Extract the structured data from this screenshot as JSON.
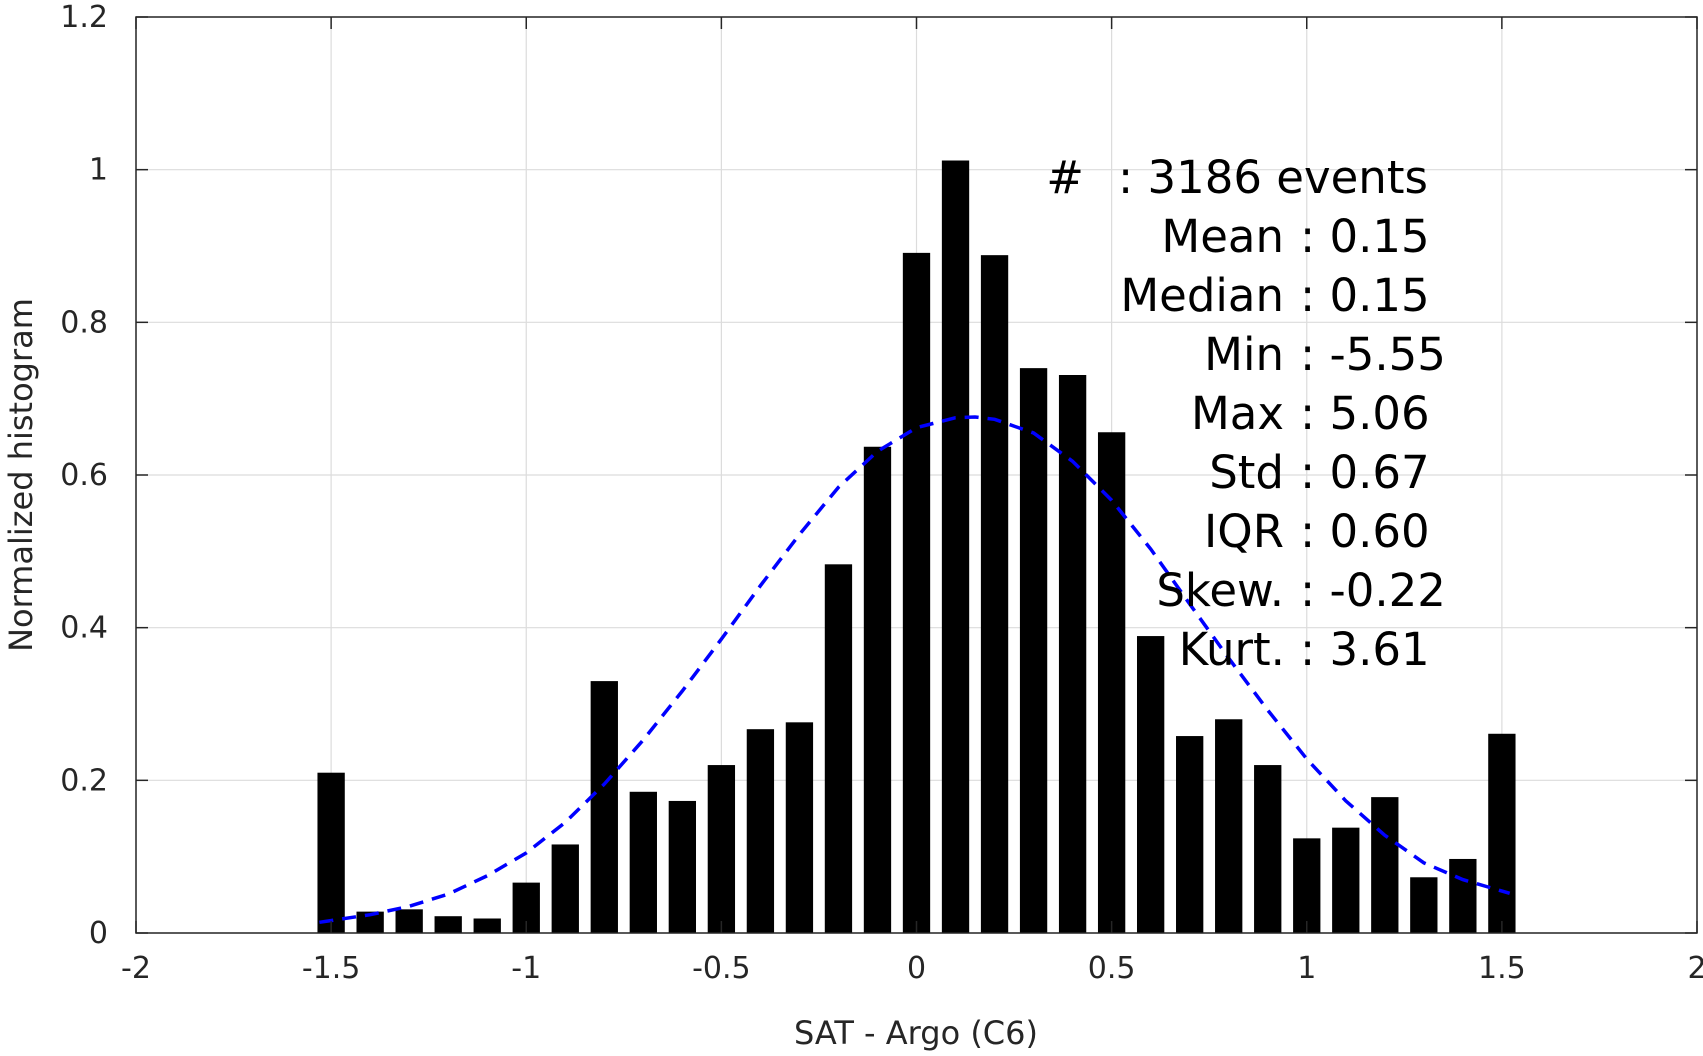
{
  "chart_data": {
    "type": "bar",
    "xlabel": "SAT - Argo (C6)",
    "ylabel": "Normalized histogram",
    "xlim": [
      -2,
      2
    ],
    "ylim": [
      0,
      1.2
    ],
    "grid": true,
    "xticks": [
      -2,
      -1.5,
      -1,
      -0.5,
      0,
      0.5,
      1,
      1.5,
      2
    ],
    "xtick_labels": [
      "-2",
      "-1.5",
      "-1",
      "-0.5",
      "0",
      "0.5",
      "1",
      "1.5",
      "2"
    ],
    "yticks": [
      0,
      0.2,
      0.4,
      0.6,
      0.8,
      1,
      1.2
    ],
    "ytick_labels": [
      "0",
      "0.2",
      "0.4",
      "0.6",
      "0.8",
      "1",
      "1.2"
    ],
    "bar_width": 0.07,
    "bars": {
      "x": [
        -1.5,
        -1.4,
        -1.3,
        -1.2,
        -1.1,
        -1.0,
        -0.9,
        -0.8,
        -0.7,
        -0.6,
        -0.5,
        -0.4,
        -0.3,
        -0.2,
        -0.1,
        0.0,
        0.1,
        0.2,
        0.3,
        0.4,
        0.5,
        0.6,
        0.7,
        0.8,
        0.9,
        1.0,
        1.1,
        1.2,
        1.3,
        1.4,
        1.5
      ],
      "values": [
        0.21,
        0.028,
        0.031,
        0.022,
        0.019,
        0.066,
        0.116,
        0.33,
        0.185,
        0.173,
        0.22,
        0.267,
        0.276,
        0.483,
        0.637,
        0.891,
        1.012,
        0.888,
        0.74,
        0.731,
        0.656,
        0.389,
        0.258,
        0.28,
        0.22,
        0.124,
        0.138,
        0.178,
        0.073,
        0.097,
        0.261
      ],
      "color": "#000000"
    },
    "fit_curve": {
      "style": "dashed",
      "color": "#0000ff",
      "x": [
        -1.53,
        -1.4,
        -1.3,
        -1.2,
        -1.1,
        -1.0,
        -0.9,
        -0.8,
        -0.7,
        -0.6,
        -0.5,
        -0.4,
        -0.3,
        -0.2,
        -0.1,
        0.0,
        0.1,
        0.15,
        0.2,
        0.3,
        0.4,
        0.5,
        0.6,
        0.7,
        0.8,
        0.9,
        1.0,
        1.1,
        1.2,
        1.3,
        1.4,
        1.52
      ],
      "y": [
        0.014,
        0.024,
        0.035,
        0.051,
        0.075,
        0.105,
        0.145,
        0.195,
        0.253,
        0.317,
        0.385,
        0.455,
        0.522,
        0.584,
        0.631,
        0.662,
        0.675,
        0.676,
        0.673,
        0.655,
        0.618,
        0.567,
        0.503,
        0.431,
        0.36,
        0.292,
        0.228,
        0.173,
        0.128,
        0.092,
        0.07,
        0.052
      ]
    },
    "annotations": [
      {
        "label": "#",
        "value": ": 3186 events"
      },
      {
        "label": "Mean",
        "value": ": 0.15"
      },
      {
        "label": "Median",
        "value": ": 0.15"
      },
      {
        "label": "Min",
        "value": ": -5.55"
      },
      {
        "label": "Max",
        "value": ": 5.06"
      },
      {
        "label": "Std",
        "value": ": 0.67"
      },
      {
        "label": "IQR",
        "value": ": 0.60"
      },
      {
        "label": "Skew.",
        "value": ": -0.22"
      },
      {
        "label": "Kurt.",
        "value": ": 3.61"
      }
    ]
  }
}
